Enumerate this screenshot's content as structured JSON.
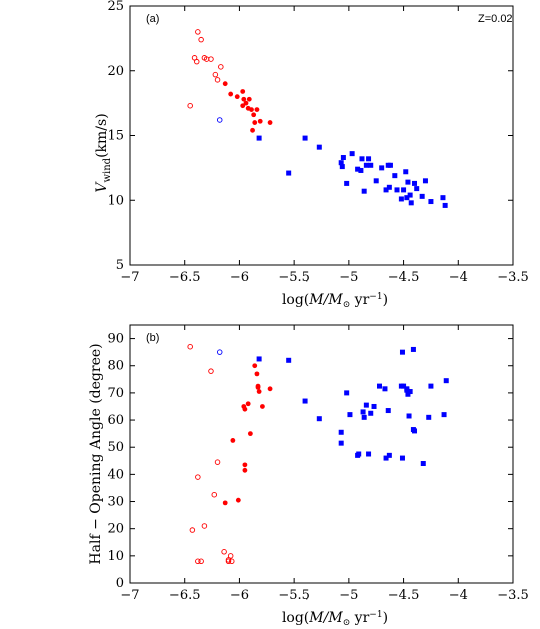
{
  "chart_data": [
    {
      "type": "scatter",
      "panel_label": "(a)",
      "annotation": "Z=0.02",
      "ylabel_parts": {
        "main": "V",
        "sub": "wind",
        "unit": "(km/s)"
      },
      "xlabel_parts": {
        "pre": "log(",
        "mdot": "M",
        "mid": "/M",
        "sun": "⊙",
        "unit": " yr",
        "exp": "−1",
        "post": ")"
      },
      "xlim": [
        -7,
        -3.5
      ],
      "ylim": [
        5,
        25
      ],
      "xticks": [
        -7,
        -6.5,
        -6,
        -5.5,
        -5,
        -4.5,
        -4,
        -3.5
      ],
      "xtick_labels": [
        "−7",
        "−6.5",
        "−6",
        "−5.5",
        "−5",
        "−4.5",
        "−4",
        "−3.5"
      ],
      "yticks": [
        5,
        10,
        15,
        20,
        25
      ],
      "ytick_labels": [
        "5",
        "10",
        "15",
        "20",
        "25"
      ],
      "series": [
        {
          "marker": "open-circle",
          "color": "#ff0000",
          "x": [
            -6.38,
            -6.35,
            -6.32,
            -6.3,
            -6.41,
            -6.39,
            -6.26,
            -6.22,
            -6.2,
            -6.17,
            -6.45
          ],
          "y": [
            23.0,
            22.4,
            21.0,
            20.9,
            21.0,
            20.7,
            20.9,
            19.7,
            19.3,
            20.3,
            17.3
          ]
        },
        {
          "marker": "open-circle",
          "color": "#0000ff",
          "x": [
            -6.18
          ],
          "y": [
            16.2
          ]
        },
        {
          "marker": "filled-circle",
          "color": "#ff0000",
          "x": [
            -6.13,
            -6.08,
            -6.02,
            -5.97,
            -5.96,
            -5.94,
            -5.97,
            -5.91,
            -5.92,
            -5.89,
            -5.87,
            -5.84,
            -5.81,
            -5.86,
            -5.88,
            -5.72
          ],
          "y": [
            19.0,
            18.2,
            18.0,
            18.4,
            17.8,
            17.5,
            17.3,
            17.8,
            17.1,
            17.0,
            16.6,
            17.0,
            16.1,
            16.0,
            15.4,
            16.0
          ]
        },
        {
          "marker": "filled-square",
          "color": "#0000ff",
          "x": [
            -5.82,
            -5.55,
            -5.4,
            -5.27,
            -5.07,
            -5.02,
            -5.05,
            -5.06,
            -4.97,
            -4.92,
            -4.88,
            -4.89,
            -4.86,
            -4.84,
            -4.82,
            -4.8,
            -4.75,
            -4.7,
            -4.66,
            -4.64,
            -4.62,
            -4.63,
            -4.58,
            -4.56,
            -4.52,
            -4.5,
            -4.48,
            -4.46,
            -4.47,
            -4.44,
            -4.43,
            -4.4,
            -4.38,
            -4.33,
            -4.3,
            -4.25,
            -4.14,
            -4.12
          ],
          "y": [
            14.8,
            12.1,
            14.8,
            14.1,
            12.9,
            11.3,
            13.3,
            12.6,
            13.6,
            12.4,
            13.2,
            12.3,
            10.7,
            12.7,
            13.2,
            12.7,
            11.5,
            12.5,
            10.8,
            12.7,
            12.7,
            11.0,
            11.9,
            10.8,
            10.1,
            10.8,
            12.2,
            11.4,
            10.2,
            10.4,
            9.8,
            11.3,
            10.9,
            10.3,
            11.5,
            9.9,
            10.2,
            9.6
          ]
        }
      ]
    },
    {
      "type": "scatter",
      "panel_label": "(b)",
      "ylabel_text": "Half − Opening  Angle (degree)",
      "xlabel_parts": {
        "pre": "log(",
        "mdot": "M",
        "mid": "/M",
        "sun": "⊙",
        "unit": " yr",
        "exp": "−1",
        "post": ")"
      },
      "xlim": [
        -7,
        -3.5
      ],
      "ylim": [
        0,
        95
      ],
      "xticks": [
        -7,
        -6.5,
        -6,
        -5.5,
        -5,
        -4.5,
        -4,
        -3.5
      ],
      "xtick_labels": [
        "−7",
        "−6.5",
        "−6",
        "−5.5",
        "−5",
        "−4.5",
        "−4",
        "−3.5"
      ],
      "yticks": [
        0,
        10,
        20,
        30,
        40,
        50,
        60,
        70,
        80,
        90
      ],
      "ytick_labels": [
        "0",
        "10",
        "20",
        "30",
        "40",
        "50",
        "60",
        "70",
        "80",
        "90"
      ],
      "series": [
        {
          "marker": "open-circle",
          "color": "#ff0000",
          "x": [
            -6.45,
            -6.26,
            -6.2,
            -6.23,
            -6.32,
            -6.38,
            -6.43,
            -6.14,
            -6.1,
            -6.08,
            -6.1,
            -6.38,
            -6.35,
            -6.07
          ],
          "y": [
            87,
            78,
            44.5,
            32.5,
            21,
            39,
            19.5,
            11.5,
            8,
            10,
            8.5,
            8,
            8,
            8
          ]
        },
        {
          "marker": "open-circle",
          "color": "#0000ff",
          "x": [
            -6.18
          ],
          "y": [
            85
          ]
        },
        {
          "marker": "filled-circle",
          "color": "#ff0000",
          "x": [
            -5.86,
            -5.84,
            -5.83,
            -5.82,
            -5.83,
            -5.72,
            -5.79,
            -5.96,
            -5.95,
            -5.92,
            -5.9,
            -5.95,
            -5.95,
            -6.06,
            -6.01,
            -6.13
          ],
          "y": [
            80,
            77,
            72,
            70.5,
            72.5,
            71.5,
            65,
            65,
            64,
            66,
            55,
            43.5,
            41.5,
            52.5,
            30.5,
            29.5
          ]
        },
        {
          "marker": "filled-square",
          "color": "#0000ff",
          "x": [
            -5.82,
            -5.55,
            -5.4,
            -5.27,
            -5.07,
            -5.07,
            -5.02,
            -4.99,
            -4.92,
            -4.91,
            -4.87,
            -4.86,
            -4.84,
            -4.82,
            -4.8,
            -4.77,
            -4.72,
            -4.67,
            -4.66,
            -4.64,
            -4.51,
            -4.5,
            -4.51,
            -4.47,
            -4.46,
            -4.45,
            -4.44,
            -4.41,
            -4.41,
            -4.4,
            -4.32,
            -4.27,
            -4.25,
            -4.13,
            -4.11,
            -4.52,
            -4.63,
            -4.47
          ],
          "y": [
            82.5,
            82,
            67,
            60.5,
            55.5,
            51.5,
            70,
            62,
            47,
            47.5,
            63,
            61,
            65.5,
            47.5,
            62.5,
            65,
            72.5,
            71.5,
            46,
            63.5,
            85,
            72.5,
            46,
            71.5,
            69.5,
            61.5,
            70.5,
            56.5,
            86,
            56,
            44,
            61,
            72.5,
            62,
            74.5,
            72.5,
            47,
            71
          ]
        }
      ]
    }
  ]
}
